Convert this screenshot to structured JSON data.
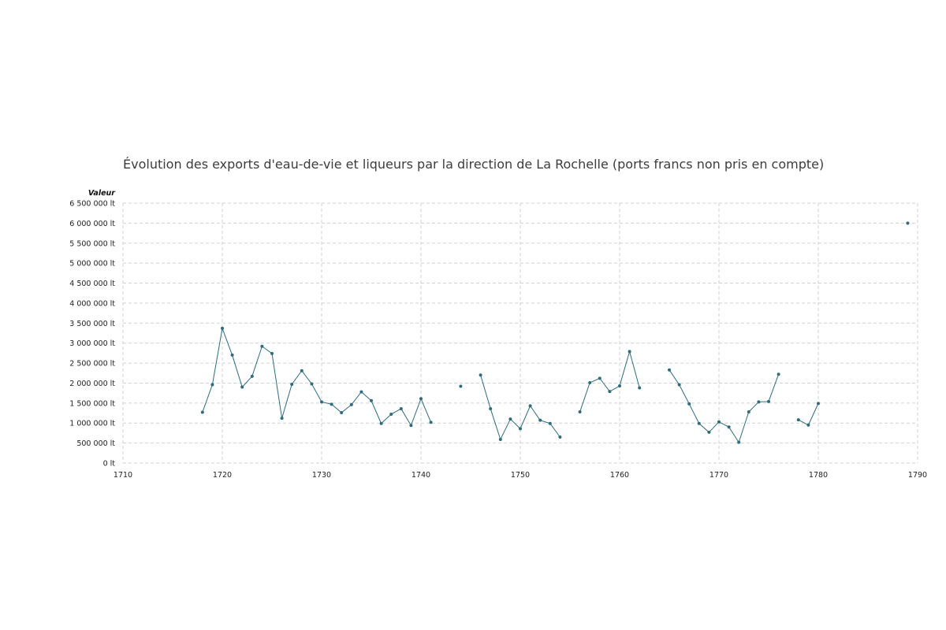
{
  "chart_data": {
    "type": "line",
    "title": "Évolution des exports d'eau-de-vie et liqueurs par la direction de La Rochelle (ports francs non pris en compte)",
    "ylabel": "Valeur",
    "xlabel": "",
    "xlim": [
      1710,
      1790
    ],
    "ylim": [
      0,
      6500000
    ],
    "x_ticks": [
      1710,
      1720,
      1730,
      1740,
      1750,
      1760,
      1770,
      1780,
      1790
    ],
    "y_ticks": [
      0,
      500000,
      1000000,
      1500000,
      2000000,
      2500000,
      3000000,
      3500000,
      4000000,
      4500000,
      5000000,
      5500000,
      6000000,
      6500000
    ],
    "y_tick_labels": [
      "0 lt",
      "500 000 lt",
      "1 000 000 lt",
      "1 500 000 lt",
      "2 000 000 lt",
      "2 500 000 lt",
      "3 000 000 lt",
      "3 500 000 lt",
      "4 000 000 lt",
      "4 500 000 lt",
      "5 000 000 lt",
      "5 500 000 lt",
      "6 000 000 lt",
      "6 500 000 lt"
    ],
    "grid": true,
    "grid_style": "dashed",
    "line_color": "#2f6b7c",
    "series": [
      {
        "name": "",
        "points": [
          [
            1718,
            1270000
          ],
          [
            1719,
            1960000
          ],
          [
            1720,
            3370000
          ],
          [
            1721,
            2700000
          ],
          [
            1722,
            1900000
          ],
          [
            1723,
            2170000
          ],
          [
            1724,
            2920000
          ],
          [
            1725,
            2740000
          ],
          [
            1726,
            1120000
          ],
          [
            1727,
            1970000
          ],
          [
            1728,
            2310000
          ],
          [
            1729,
            1980000
          ],
          [
            1730,
            1530000
          ],
          [
            1731,
            1470000
          ],
          [
            1732,
            1260000
          ],
          [
            1733,
            1460000
          ],
          [
            1734,
            1780000
          ],
          [
            1735,
            1560000
          ],
          [
            1736,
            990000
          ],
          [
            1737,
            1220000
          ],
          [
            1738,
            1360000
          ],
          [
            1739,
            940000
          ],
          [
            1740,
            1610000
          ],
          [
            1741,
            1020000
          ],
          [
            1744,
            1920000
          ],
          [
            1746,
            2200000
          ],
          [
            1747,
            1360000
          ],
          [
            1748,
            590000
          ],
          [
            1749,
            1100000
          ],
          [
            1750,
            860000
          ],
          [
            1751,
            1430000
          ],
          [
            1752,
            1070000
          ],
          [
            1753,
            990000
          ],
          [
            1754,
            650000
          ],
          [
            1756,
            1280000
          ],
          [
            1757,
            2010000
          ],
          [
            1758,
            2120000
          ],
          [
            1759,
            1790000
          ],
          [
            1760,
            1930000
          ],
          [
            1761,
            2790000
          ],
          [
            1762,
            1880000
          ],
          [
            1765,
            2330000
          ],
          [
            1766,
            1960000
          ],
          [
            1767,
            1480000
          ],
          [
            1768,
            990000
          ],
          [
            1769,
            770000
          ],
          [
            1770,
            1030000
          ],
          [
            1771,
            900000
          ],
          [
            1772,
            520000
          ],
          [
            1773,
            1280000
          ],
          [
            1774,
            1530000
          ],
          [
            1775,
            1540000
          ],
          [
            1776,
            2220000
          ],
          [
            1778,
            1080000
          ],
          [
            1779,
            950000
          ],
          [
            1780,
            1490000
          ],
          [
            1789,
            6000000
          ]
        ]
      }
    ]
  }
}
